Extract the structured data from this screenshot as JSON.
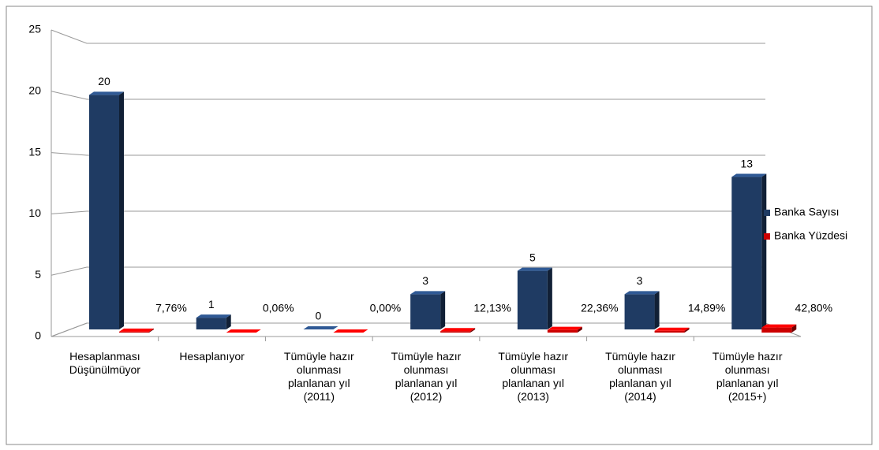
{
  "chart_data": {
    "type": "bar3d",
    "categories": [
      "Hesaplanması Düşünülmüyor",
      "Hesaplanıyor",
      "Tümüyle hazır olunması planlanan yıl (2011)",
      "Tümüyle hazır olunması planlanan yıl (2012)",
      "Tümüyle hazır olunması planlanan yıl (2013)",
      "Tümüyle hazır olunması planlanan yıl (2014)",
      "Tümüyle hazır olunması planlanan yıl (2015+)"
    ],
    "series": [
      {
        "name": "Banka Sayısı",
        "color": "#1f3b63",
        "values": [
          20,
          1,
          0,
          3,
          5,
          3,
          13
        ]
      },
      {
        "name": "Banka Yüzdesi",
        "color": "#cc0000",
        "values": [
          0.0776,
          0.0006,
          0,
          0.1213,
          0.2236,
          0.1489,
          0.428
        ],
        "value_labels": [
          "7,76%",
          "0,06%",
          "0,00%",
          "12,13%",
          "22,36%",
          "14,89%",
          "42,80%"
        ]
      }
    ],
    "ylim": [
      0,
      25
    ],
    "yticks": [
      0,
      5,
      10,
      15,
      20,
      25
    ],
    "grid": true,
    "legend": "right"
  }
}
